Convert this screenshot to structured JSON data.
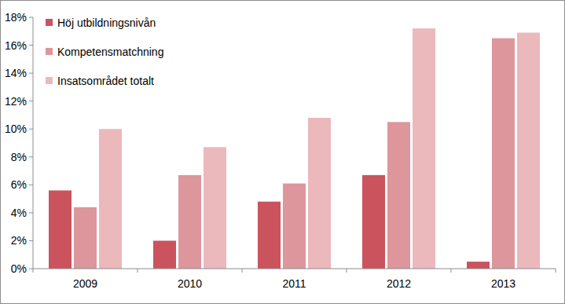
{
  "chart_data": {
    "type": "bar",
    "categories": [
      "2009",
      "2010",
      "2011",
      "2012",
      "2013"
    ],
    "series": [
      {
        "name": "Höj utbildningsnivån",
        "color": "#cb535d",
        "values": [
          5.6,
          2.0,
          4.8,
          6.7,
          0.5
        ]
      },
      {
        "name": "Kompetensmatchning",
        "color": "#dd969c",
        "values": [
          4.4,
          6.7,
          6.1,
          10.5,
          16.5
        ]
      },
      {
        "name": "Insatsområdet totalt",
        "color": "#ebb8bc",
        "values": [
          10.0,
          8.7,
          10.8,
          17.2,
          16.9
        ]
      }
    ],
    "ylim": [
      0,
      18
    ],
    "yticks": [
      {
        "value": 0,
        "label": "0%"
      },
      {
        "value": 2,
        "label": "2%"
      },
      {
        "value": 4,
        "label": "4%"
      },
      {
        "value": 6,
        "label": "6%"
      },
      {
        "value": 8,
        "label": "8%"
      },
      {
        "value": 10,
        "label": "10%"
      },
      {
        "value": 12,
        "label": "12%"
      },
      {
        "value": 14,
        "label": "14%"
      },
      {
        "value": 16,
        "label": "16%"
      },
      {
        "value": 18,
        "label": "18%"
      }
    ],
    "grid": false,
    "legend": "upper left"
  }
}
